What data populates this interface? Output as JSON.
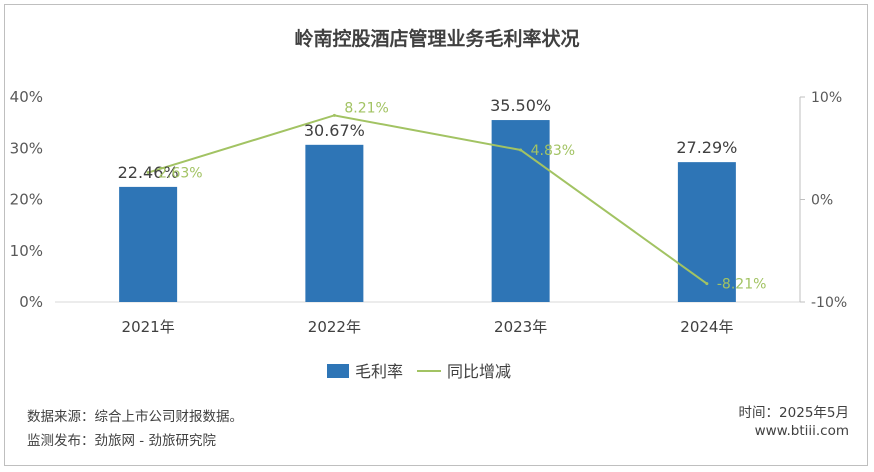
{
  "chart_data": {
    "type": "bar",
    "title": "岭南控股酒店管理业务毛利率状况",
    "categories": [
      "2021年",
      "2022年",
      "2023年",
      "2024年"
    ],
    "series": [
      {
        "name": "毛利率",
        "type": "bar",
        "axis": "left",
        "values": [
          22.46,
          30.67,
          35.5,
          27.29
        ],
        "labels": [
          "22.46%",
          "30.67%",
          "35.50%",
          "27.29%"
        ],
        "color": "#2e75b6"
      },
      {
        "name": "同比增减",
        "type": "line",
        "axis": "right",
        "values": [
          2.63,
          8.21,
          4.83,
          -8.21
        ],
        "labels": [
          "2.63%",
          "8.21%",
          "4.83%",
          "-8.21%"
        ],
        "color": "#a2c363"
      }
    ],
    "y_left": {
      "ylim": [
        0,
        40
      ],
      "ticks": [
        "0%",
        "10%",
        "20%",
        "30%",
        "40%"
      ]
    },
    "y_right": {
      "ylim": [
        -10,
        10
      ],
      "ticks": [
        "-10%",
        "0%",
        "10%"
      ]
    },
    "legend": {
      "position": "bottom"
    },
    "grid": false
  },
  "footer": {
    "source": "数据来源：综合上市公司财报数据。",
    "publisher": "监测发布：劲旅网 - 劲旅研究院",
    "date": "时间：2025年5月",
    "website": "www.btiii.com"
  }
}
